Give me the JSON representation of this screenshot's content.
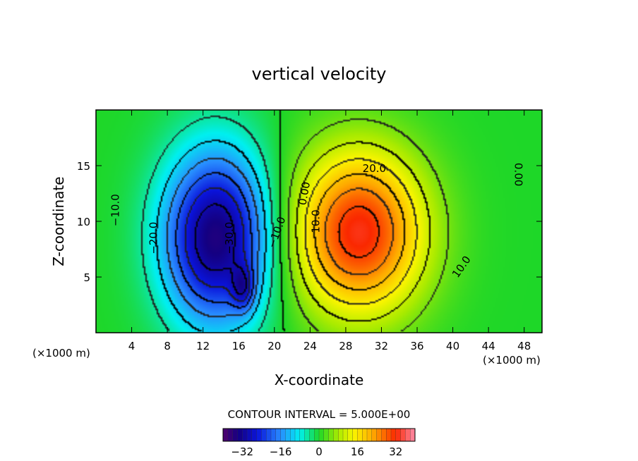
{
  "chart_data": {
    "type": "heatmap",
    "title": "vertical velocity",
    "xlabel": "X-coordinate",
    "ylabel": "Z-coordinate",
    "x_unit_left": "(×1000 m)",
    "x_unit_right": "(×1000 m)",
    "xlim": [
      0,
      50
    ],
    "ylim": [
      0,
      20
    ],
    "x_ticks": [
      4,
      8,
      12,
      16,
      20,
      24,
      28,
      32,
      36,
      40,
      44,
      48
    ],
    "y_ticks": [
      5,
      10,
      15
    ],
    "contour_interval_text": "CONTOUR INTERVAL = 5.000E+00",
    "contour_interval": 5,
    "colorbar": {
      "min": -40,
      "max": 40,
      "ticks": [
        -32,
        -16,
        0,
        16,
        32
      ],
      "tick_labels": [
        "−32",
        "−16",
        "0",
        "16",
        "32"
      ]
    },
    "fields": [
      {
        "x": 13.5,
        "z": 8.5,
        "amplitude": -35,
        "sx": 4.2,
        "sz": 5.5
      },
      {
        "x": 16.5,
        "z": 4.0,
        "amplitude": -14,
        "sx": 0.9,
        "sz": 1.4
      },
      {
        "x": 29.5,
        "z": 9.0,
        "amplitude": 33,
        "sx": 5.2,
        "sz": 5.2
      }
    ],
    "contour_labels": [
      {
        "text": "−10.0",
        "x": 2.2,
        "z": 11.0,
        "rotate": -90
      },
      {
        "text": "−20.0",
        "x": 6.5,
        "z": 8.5,
        "rotate": -90
      },
      {
        "text": "−30.0",
        "x": 15.0,
        "z": 8.5,
        "rotate": -90
      },
      {
        "text": "−10.0",
        "x": 20.3,
        "z": 9.0,
        "rotate": -70
      },
      {
        "text": "0.00",
        "x": 23.4,
        "z": 12.5,
        "rotate": -80
      },
      {
        "text": "10.0",
        "x": 24.7,
        "z": 10.0,
        "rotate": -90
      },
      {
        "text": "20.0",
        "x": 31.2,
        "z": 14.7,
        "rotate": 0
      },
      {
        "text": "10.0",
        "x": 41.0,
        "z": 5.9,
        "rotate": -55
      },
      {
        "text": "0.00",
        "x": 47.3,
        "z": 14.2,
        "rotate": 90
      }
    ]
  }
}
